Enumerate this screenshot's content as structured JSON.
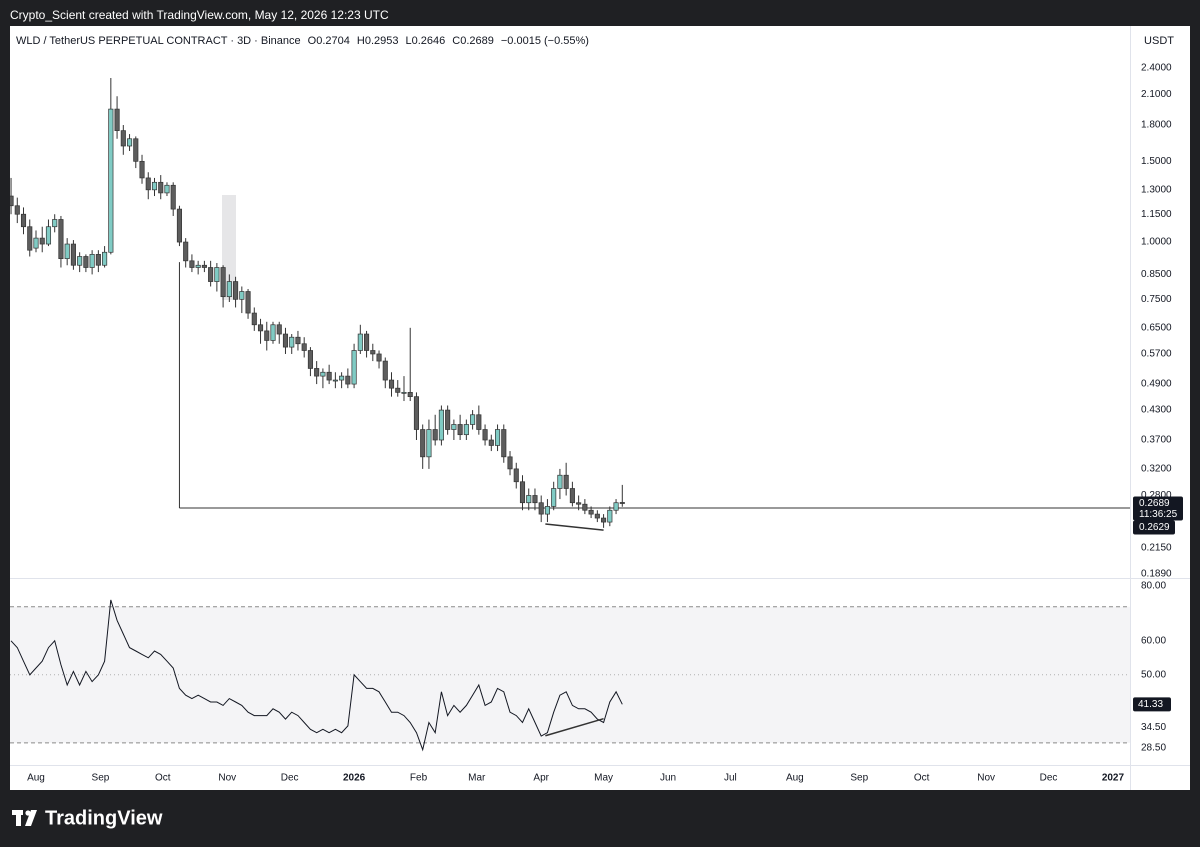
{
  "page": {
    "attribution": "Crypto_Scient created with TradingView.com, May 12, 2026 12:23 UTC",
    "brand": "TradingView"
  },
  "chart_data": [
    {
      "type": "candlestick",
      "title": "WLD / TetherUS PERPETUAL CONTRACT · 3D · Binance",
      "ohlc_labels": [
        "O",
        "H",
        "L",
        "C"
      ],
      "change": "−0.0015 (−0.55%)",
      "currency": "USDT",
      "countdown": "11:36:25",
      "x": [
        -165,
        -162,
        -159,
        -156,
        -153,
        -150,
        -147,
        -144,
        -141,
        -138,
        -135,
        -132,
        -129,
        -126,
        -123,
        -120,
        -117,
        -114,
        -111,
        -108,
        -105,
        -102,
        -99,
        -96,
        -93,
        -90,
        -87,
        -84,
        -81,
        -78,
        -75,
        -72,
        -69,
        -66,
        -63,
        -60,
        -57,
        -54,
        -51,
        -48,
        -45,
        -42,
        -39,
        -36,
        -33,
        -30,
        -27,
        -24,
        -21,
        -18,
        -15,
        -12,
        -9,
        -6,
        -3,
        0,
        3,
        6,
        9,
        12,
        15,
        18,
        21,
        24,
        27,
        30,
        33,
        36,
        39,
        42,
        45,
        48,
        51,
        54,
        57,
        60,
        63,
        66,
        69,
        72,
        75,
        78,
        81,
        84,
        87,
        90,
        93,
        96,
        99,
        102,
        105,
        108,
        111,
        114,
        117,
        120,
        123,
        126,
        129
      ],
      "open": [
        1.26,
        1.2,
        1.15,
        1.08,
        0.97,
        1.02,
        0.99,
        1.08,
        1.12,
        0.92,
        0.99,
        0.89,
        0.93,
        0.88,
        0.94,
        0.89,
        0.95,
        1.95,
        1.75,
        1.62,
        1.68,
        1.5,
        1.38,
        1.3,
        1.35,
        1.28,
        1.33,
        1.18,
        1.0,
        0.91,
        0.88,
        0.89,
        0.88,
        0.82,
        0.88,
        0.76,
        0.82,
        0.75,
        0.78,
        0.7,
        0.66,
        0.64,
        0.61,
        0.66,
        0.63,
        0.59,
        0.62,
        0.6,
        0.58,
        0.53,
        0.51,
        0.52,
        0.5,
        0.5,
        0.51,
        0.49,
        0.58,
        0.63,
        0.58,
        0.57,
        0.55,
        0.5,
        0.48,
        0.47,
        0.47,
        0.46,
        0.39,
        0.34,
        0.39,
        0.37,
        0.43,
        0.39,
        0.4,
        0.38,
        0.4,
        0.42,
        0.39,
        0.37,
        0.36,
        0.39,
        0.34,
        0.32,
        0.3,
        0.27,
        0.28,
        0.27,
        0.255,
        0.265,
        0.29,
        0.31,
        0.29,
        0.27,
        0.268,
        0.26,
        0.255,
        0.25,
        0.245,
        0.26,
        0.2704
      ],
      "high": [
        1.38,
        1.25,
        1.19,
        1.12,
        1.06,
        1.08,
        1.12,
        1.15,
        1.14,
        1.02,
        1.01,
        0.95,
        0.94,
        0.96,
        0.96,
        0.98,
        2.28,
        2.08,
        1.8,
        1.72,
        1.7,
        1.55,
        1.42,
        1.38,
        1.4,
        1.35,
        1.35,
        1.2,
        1.02,
        0.94,
        0.91,
        0.91,
        0.91,
        0.9,
        0.89,
        0.85,
        0.84,
        0.8,
        0.79,
        0.72,
        0.68,
        0.67,
        0.67,
        0.67,
        0.65,
        0.63,
        0.64,
        0.62,
        0.59,
        0.55,
        0.53,
        0.54,
        0.52,
        0.52,
        0.53,
        0.6,
        0.66,
        0.64,
        0.6,
        0.58,
        0.56,
        0.52,
        0.5,
        0.51,
        0.65,
        0.47,
        0.4,
        0.41,
        0.42,
        0.44,
        0.44,
        0.41,
        0.42,
        0.41,
        0.43,
        0.44,
        0.4,
        0.38,
        0.4,
        0.4,
        0.35,
        0.33,
        0.31,
        0.29,
        0.29,
        0.28,
        0.275,
        0.3,
        0.32,
        0.33,
        0.3,
        0.28,
        0.275,
        0.265,
        0.26,
        0.255,
        0.265,
        0.275,
        0.2953
      ],
      "low": [
        1.15,
        1.1,
        1.04,
        0.93,
        0.95,
        0.95,
        0.98,
        1.05,
        0.88,
        0.89,
        0.87,
        0.86,
        0.86,
        0.85,
        0.86,
        0.88,
        0.94,
        1.68,
        1.55,
        1.58,
        1.45,
        1.34,
        1.24,
        1.26,
        1.24,
        1.26,
        1.14,
        0.98,
        0.88,
        0.86,
        0.85,
        0.86,
        0.8,
        0.78,
        0.72,
        0.74,
        0.72,
        0.7,
        0.68,
        0.64,
        0.6,
        0.58,
        0.6,
        0.6,
        0.57,
        0.57,
        0.58,
        0.56,
        0.51,
        0.49,
        0.48,
        0.49,
        0.48,
        0.48,
        0.48,
        0.48,
        0.57,
        0.56,
        0.55,
        0.53,
        0.48,
        0.46,
        0.46,
        0.45,
        0.45,
        0.37,
        0.32,
        0.32,
        0.36,
        0.36,
        0.38,
        0.37,
        0.37,
        0.37,
        0.39,
        0.38,
        0.36,
        0.35,
        0.35,
        0.33,
        0.31,
        0.29,
        0.26,
        0.26,
        0.26,
        0.245,
        0.245,
        0.26,
        0.275,
        0.28,
        0.265,
        0.26,
        0.255,
        0.25,
        0.245,
        0.238,
        0.24,
        0.255,
        0.2646
      ],
      "close": [
        1.2,
        1.15,
        1.08,
        0.96,
        1.02,
        0.99,
        1.08,
        1.12,
        0.92,
        0.99,
        0.89,
        0.93,
        0.88,
        0.94,
        0.89,
        0.95,
        1.95,
        1.75,
        1.62,
        1.68,
        1.5,
        1.38,
        1.3,
        1.35,
        1.28,
        1.33,
        1.18,
        1.0,
        0.91,
        0.88,
        0.89,
        0.88,
        0.82,
        0.88,
        0.76,
        0.82,
        0.75,
        0.78,
        0.7,
        0.66,
        0.64,
        0.61,
        0.66,
        0.63,
        0.59,
        0.62,
        0.6,
        0.58,
        0.53,
        0.51,
        0.52,
        0.5,
        0.5,
        0.51,
        0.49,
        0.58,
        0.63,
        0.58,
        0.57,
        0.55,
        0.5,
        0.48,
        0.47,
        0.47,
        0.46,
        0.39,
        0.34,
        0.39,
        0.37,
        0.43,
        0.39,
        0.4,
        0.38,
        0.4,
        0.42,
        0.39,
        0.37,
        0.36,
        0.39,
        0.34,
        0.32,
        0.3,
        0.27,
        0.28,
        0.27,
        0.255,
        0.265,
        0.29,
        0.31,
        0.29,
        0.27,
        0.268,
        0.26,
        0.255,
        0.25,
        0.245,
        0.26,
        0.27,
        0.2689
      ],
      "up_color": "#80cbc4",
      "down_color": "#5d5d5d",
      "log_scale": true,
      "xlim": [
        -165.5,
        373.2
      ],
      "xticks": [
        {
          "value": -153,
          "label": "Aug"
        },
        {
          "value": -122,
          "label": "Sep"
        },
        {
          "value": -92,
          "label": "Oct"
        },
        {
          "value": -61,
          "label": "Nov"
        },
        {
          "value": -31,
          "label": "Dec"
        },
        {
          "value": 0,
          "label": "2026"
        },
        {
          "value": 31,
          "label": "Feb"
        },
        {
          "value": 59,
          "label": "Mar"
        },
        {
          "value": 90,
          "label": "Apr"
        },
        {
          "value": 120,
          "label": "May"
        },
        {
          "value": 151,
          "label": "Jun"
        },
        {
          "value": 181,
          "label": "Jul"
        },
        {
          "value": 212,
          "label": "Aug"
        },
        {
          "value": 243,
          "label": "Sep"
        },
        {
          "value": 273,
          "label": "Oct"
        },
        {
          "value": 304,
          "label": "Nov"
        },
        {
          "value": 334,
          "label": "Dec"
        },
        {
          "value": 365,
          "label": "2027"
        }
      ],
      "ylim": [
        0.185,
        2.96
      ],
      "yticks": [
        {
          "value": 2.4,
          "label": "2.4000"
        },
        {
          "value": 2.1,
          "label": "2.1000"
        },
        {
          "value": 1.8,
          "label": "1.8000"
        },
        {
          "value": 1.5,
          "label": "1.5000"
        },
        {
          "value": 1.3,
          "label": "1.3000"
        },
        {
          "value": 1.15,
          "label": "1.1500"
        },
        {
          "value": 1,
          "label": "1.0000"
        },
        {
          "value": 0.85,
          "label": "0.8500"
        },
        {
          "value": 0.75,
          "label": "0.7500"
        },
        {
          "value": 0.65,
          "label": "0.6500"
        },
        {
          "value": 0.57,
          "label": "0.5700"
        },
        {
          "value": 0.49,
          "label": "0.4900"
        },
        {
          "value": 0.43,
          "label": "0.4300"
        },
        {
          "value": 0.37,
          "label": "0.3700"
        },
        {
          "value": 0.32,
          "label": "0.3200"
        },
        {
          "value": 0.28,
          "label": "0.2800"
        },
        {
          "value": 0.215,
          "label": "0.2150"
        },
        {
          "value": 0.189,
          "label": "0.1890"
        }
      ],
      "level": 0.2629,
      "level_start": -84,
      "level_top": 0.904,
      "line_color": "#333333",
      "divergence": {
        "x": [
          92,
          120
        ],
        "values": [
          0.2426,
          0.2353
        ]
      }
    },
    {
      "type": "line",
      "values": [
        60,
        58,
        54,
        50,
        52,
        54,
        58,
        60,
        53,
        47,
        51,
        47,
        51,
        48,
        50,
        54,
        72,
        66,
        62,
        58,
        57,
        56,
        55,
        57,
        56,
        54,
        52,
        46,
        44,
        43,
        44,
        43,
        42,
        42,
        41,
        43,
        42,
        41,
        39,
        38,
        38,
        38,
        40,
        39,
        37,
        39,
        38,
        36,
        34,
        33,
        34,
        33,
        34,
        33,
        35,
        50,
        48,
        46,
        46,
        45,
        42,
        39,
        39,
        38,
        36,
        33,
        28,
        36,
        33,
        45,
        38,
        41,
        39,
        41,
        44,
        47,
        41,
        42,
        46,
        45,
        39,
        38,
        36,
        40,
        36,
        32,
        33,
        39,
        44,
        45,
        41,
        40,
        40,
        39,
        37,
        36,
        42,
        45,
        41.33
      ],
      "color": "#131722",
      "ylim": [
        23.5,
        80.5
      ],
      "yticks": [
        {
          "value": 80,
          "label": "80.00"
        },
        {
          "value": 60,
          "label": "60.00"
        },
        {
          "value": 50,
          "label": "50.00"
        },
        {
          "value": 34.5,
          "label": "34.50"
        },
        {
          "value": 28.5,
          "label": "28.50"
        }
      ],
      "bands": [
        70,
        50,
        30
      ],
      "band_fill": "#f4f4f6",
      "divergence": {
        "values": [
          32.1,
          37.1
        ]
      }
    }
  ]
}
